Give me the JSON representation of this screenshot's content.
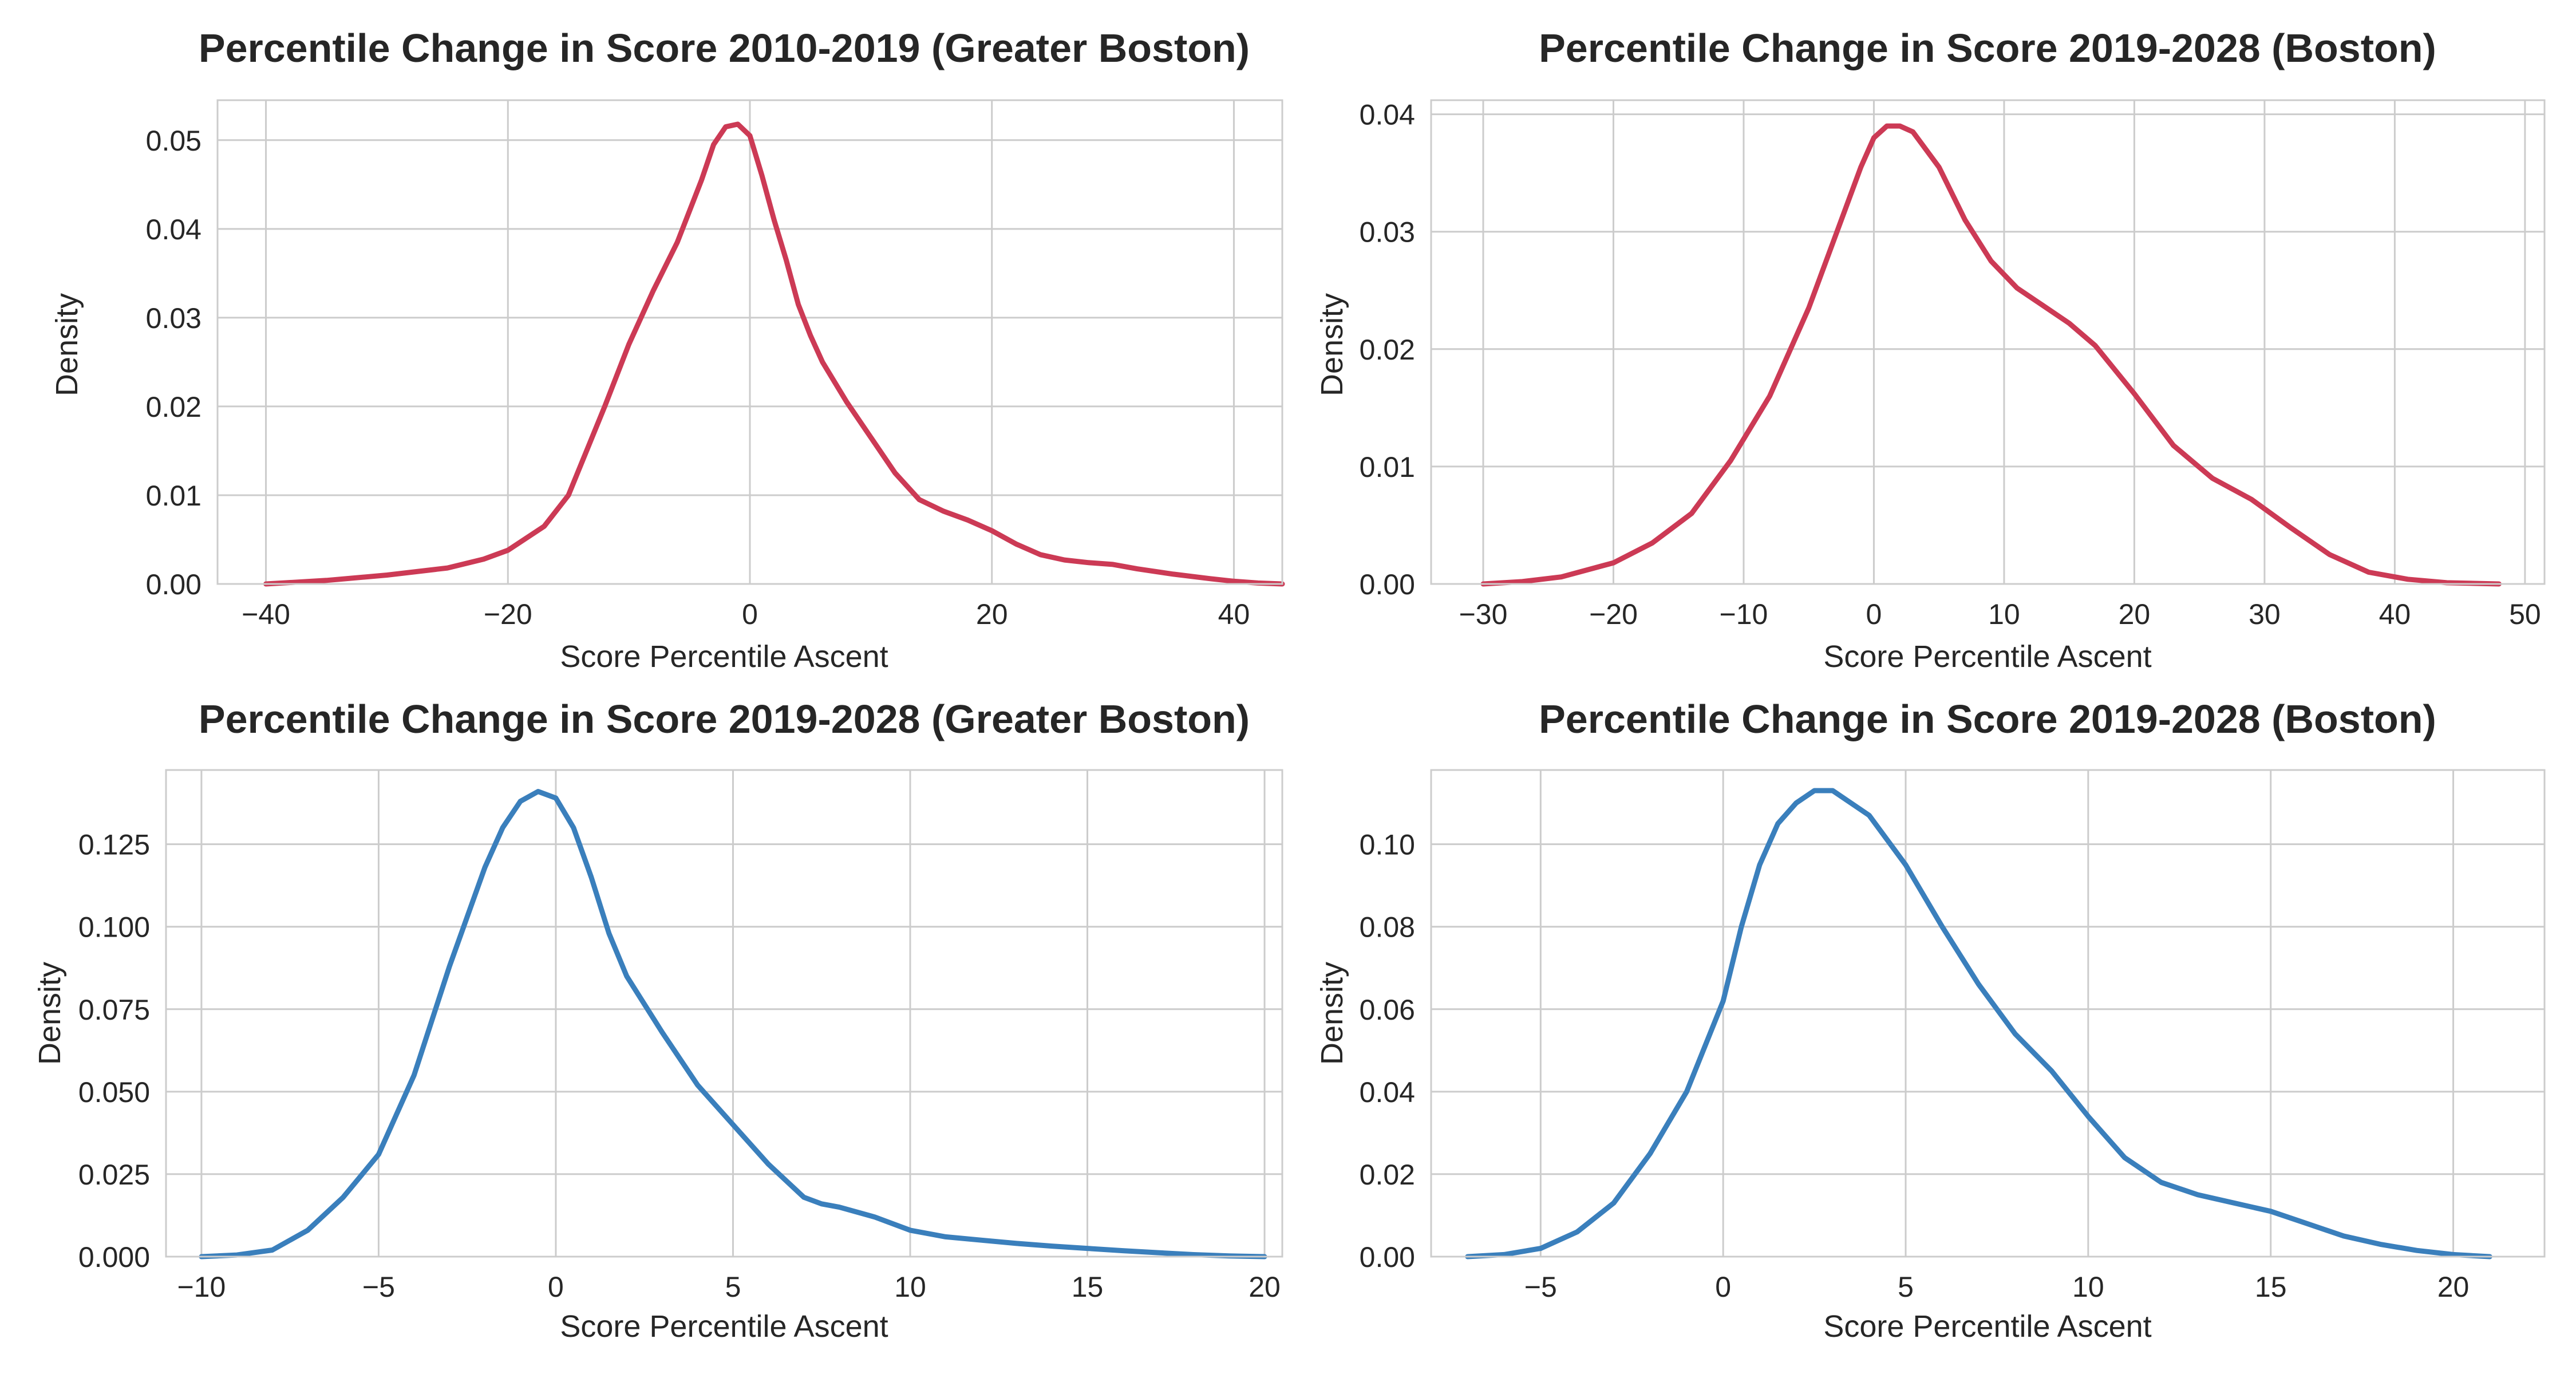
{
  "chart_data": [
    {
      "type": "line",
      "title": "Percentile Change in Score 2010-2019 (Greater Boston)",
      "xlabel": "Score Percentile Ascent",
      "ylabel": "Density",
      "xlim": [
        -44,
        44
      ],
      "ylim": [
        0,
        0.0545
      ],
      "xticks": [
        -40,
        -20,
        0,
        20,
        40
      ],
      "xtick_labels": [
        "−40",
        "−20",
        "0",
        "20",
        "40"
      ],
      "yticks": [
        0,
        0.01,
        0.02,
        0.03,
        0.04,
        0.05
      ],
      "ytick_labels": [
        "0.00",
        "0.01",
        "0.02",
        "0.03",
        "0.04",
        "0.05"
      ],
      "grid": true,
      "color": "#cc3a55",
      "series": [
        {
          "x": [
            -40,
            -35,
            -30,
            -25,
            -22,
            -20,
            -17,
            -15,
            -12,
            -10,
            -8,
            -6,
            -4,
            -3,
            -2,
            -1,
            0,
            1,
            2,
            3,
            4,
            5,
            6,
            8,
            10,
            12,
            14,
            16,
            18,
            20,
            22,
            24,
            26,
            28,
            30,
            32,
            35,
            38,
            40,
            42,
            44
          ],
          "y": [
            0.0,
            0.0004,
            0.001,
            0.0018,
            0.0028,
            0.0038,
            0.0065,
            0.01,
            0.02,
            0.027,
            0.033,
            0.0385,
            0.0455,
            0.0495,
            0.0515,
            0.0518,
            0.0505,
            0.046,
            0.041,
            0.0365,
            0.0315,
            0.028,
            0.025,
            0.0205,
            0.0165,
            0.0125,
            0.0095,
            0.0082,
            0.0072,
            0.006,
            0.0045,
            0.0033,
            0.0027,
            0.0024,
            0.0022,
            0.0017,
            0.0011,
            0.0006,
            0.0003,
            0.0001,
            0.0
          ]
        }
      ]
    },
    {
      "type": "line",
      "title": "Percentile Change in Score 2019-2028 (Boston)",
      "xlabel": "Score Percentile Ascent",
      "ylabel": "Density",
      "xlim": [
        -34,
        51.5
      ],
      "ylim": [
        0,
        0.0412
      ],
      "xticks": [
        -30,
        -20,
        -10,
        0,
        10,
        20,
        30,
        40,
        50
      ],
      "xtick_labels": [
        "−30",
        "−20",
        "−10",
        "0",
        "10",
        "20",
        "30",
        "40",
        "50"
      ],
      "yticks": [
        0,
        0.01,
        0.02,
        0.03,
        0.04
      ],
      "ytick_labels": [
        "0.00",
        "0.01",
        "0.02",
        "0.03",
        "0.04"
      ],
      "grid": true,
      "color": "#cc3a55",
      "series": [
        {
          "x": [
            -30,
            -27,
            -24,
            -20,
            -17,
            -14,
            -11,
            -8,
            -5,
            -3,
            -1,
            0,
            1,
            2,
            3,
            5,
            7,
            9,
            11,
            13,
            15,
            17,
            20,
            23,
            26,
            29,
            32,
            35,
            38,
            41,
            44,
            48
          ],
          "y": [
            0.0,
            0.0002,
            0.0006,
            0.0018,
            0.0035,
            0.006,
            0.0105,
            0.016,
            0.0235,
            0.0295,
            0.0355,
            0.038,
            0.039,
            0.039,
            0.0385,
            0.0355,
            0.031,
            0.0275,
            0.0252,
            0.0237,
            0.0222,
            0.0203,
            0.0162,
            0.0118,
            0.009,
            0.0072,
            0.0048,
            0.0025,
            0.001,
            0.0004,
            0.0001,
            0.0
          ]
        }
      ]
    },
    {
      "type": "line",
      "title": "Percentile Change in Score 2019-2028 (Greater Boston)",
      "xlabel": "Score Percentile Ascent",
      "ylabel": "Density",
      "xlim": [
        -11,
        20.5
      ],
      "ylim": [
        0,
        0.1475
      ],
      "xticks": [
        -10,
        -5,
        0,
        5,
        10,
        15,
        20
      ],
      "xtick_labels": [
        "−10",
        "−5",
        "0",
        "5",
        "10",
        "15",
        "20"
      ],
      "yticks": [
        0,
        0.025,
        0.05,
        0.075,
        0.1,
        0.125
      ],
      "ytick_labels": [
        "0.000",
        "0.025",
        "0.050",
        "0.075",
        "0.100",
        "0.125"
      ],
      "grid": true,
      "color": "#3a7fbc",
      "series": [
        {
          "x": [
            -10,
            -9,
            -8,
            -7,
            -6,
            -5,
            -4,
            -3,
            -2,
            -1.5,
            -1,
            -0.5,
            0,
            0.5,
            1,
            1.5,
            2,
            3,
            4,
            5,
            6,
            7,
            7.5,
            8,
            9,
            10,
            11,
            12,
            13,
            14,
            15,
            16,
            17,
            18,
            19,
            20
          ],
          "y": [
            0.0,
            0.0005,
            0.002,
            0.008,
            0.018,
            0.031,
            0.055,
            0.088,
            0.118,
            0.13,
            0.138,
            0.141,
            0.139,
            0.13,
            0.115,
            0.098,
            0.085,
            0.068,
            0.052,
            0.04,
            0.028,
            0.018,
            0.016,
            0.015,
            0.012,
            0.008,
            0.006,
            0.005,
            0.004,
            0.0032,
            0.0025,
            0.0018,
            0.0012,
            0.0006,
            0.0002,
            0.0
          ]
        }
      ]
    },
    {
      "type": "line",
      "title": "Percentile Change in Score 2019-2028 (Boston)",
      "xlabel": "Score Percentile Ascent",
      "ylabel": "Density",
      "xlim": [
        -8,
        22.5
      ],
      "ylim": [
        0,
        0.118
      ],
      "xticks": [
        -5,
        0,
        5,
        10,
        15,
        20
      ],
      "xtick_labels": [
        "−5",
        "0",
        "5",
        "10",
        "15",
        "20"
      ],
      "yticks": [
        0,
        0.02,
        0.04,
        0.06,
        0.08,
        0.1
      ],
      "ytick_labels": [
        "0.00",
        "0.02",
        "0.04",
        "0.06",
        "0.08",
        "0.10"
      ],
      "grid": true,
      "color": "#3a7fbc",
      "series": [
        {
          "x": [
            -7,
            -6,
            -5,
            -4,
            -3,
            -2,
            -1,
            0,
            0.5,
            1,
            1.5,
            2,
            2.5,
            3,
            4,
            5,
            6,
            7,
            8,
            9,
            10,
            11,
            12,
            13,
            14,
            15,
            16,
            17,
            18,
            19,
            20,
            21
          ],
          "y": [
            0.0,
            0.0005,
            0.002,
            0.006,
            0.013,
            0.025,
            0.04,
            0.062,
            0.08,
            0.095,
            0.105,
            0.11,
            0.113,
            0.113,
            0.107,
            0.095,
            0.08,
            0.066,
            0.054,
            0.045,
            0.034,
            0.024,
            0.018,
            0.015,
            0.013,
            0.011,
            0.008,
            0.005,
            0.003,
            0.0015,
            0.0005,
            0.0
          ]
        }
      ]
    }
  ]
}
